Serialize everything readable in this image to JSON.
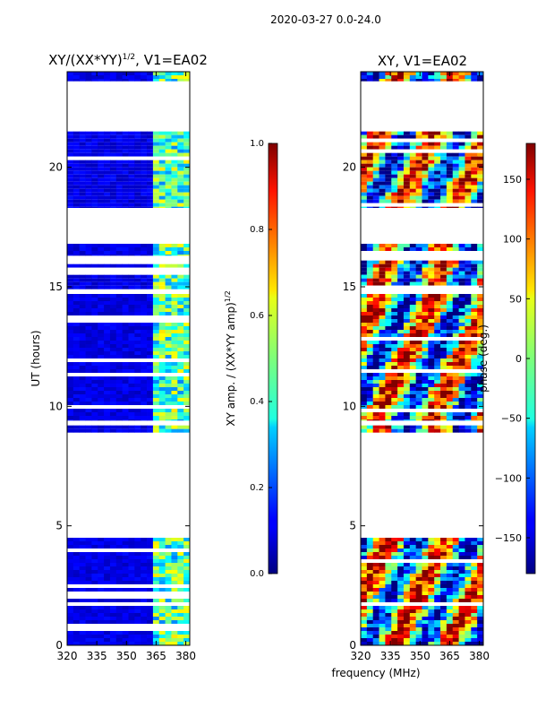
{
  "figure": {
    "suptitle": "2020-03-27 0.0-24.0",
    "xlabel": "frequency (MHz)"
  },
  "chart_data": [
    {
      "type": "heatmap",
      "title": "XY/(XX*YY)",
      "title_superscript": "1/2",
      "title_suffix": ", V1=EA02",
      "xlabel": "frequency (MHz)",
      "ylabel": "UT (hours)",
      "xlim": [
        320,
        382
      ],
      "ylim": [
        0,
        24
      ],
      "xticks": [
        320,
        335,
        350,
        365,
        380
      ],
      "yticks": [
        0,
        5,
        10,
        15,
        20
      ],
      "colormap": "jet",
      "colorbar": {
        "label": "XY amp. / (XX*YY amp)",
        "label_superscript": "1/2",
        "range": [
          0.0,
          1.0
        ],
        "ticks": [
          "0.0",
          "0.2",
          "0.4",
          "0.6",
          "0.8",
          "1.0"
        ]
      },
      "data_blocks_ut_hours": [
        [
          0.0,
          4.5
        ],
        [
          8.9,
          9.2
        ],
        [
          9.4,
          14.7
        ],
        [
          14.9,
          16.1
        ],
        [
          16.3,
          16.8
        ],
        [
          18.3,
          21.5
        ],
        [
          23.6,
          24.0
        ]
      ],
      "notes": "background amplitude near 0.05 below 361 MHz, 0.3-0.6 in 361-382 MHz"
    },
    {
      "type": "heatmap",
      "title": "XY, V1=EA02",
      "xlabel": "frequency (MHz)",
      "ylabel": "",
      "xlim": [
        320,
        382
      ],
      "ylim": [
        0,
        24
      ],
      "xticks": [
        320,
        335,
        350,
        365,
        380
      ],
      "yticks": [
        0,
        5,
        10,
        15,
        20
      ],
      "colormap": "jet",
      "colorbar": {
        "label": "phase (deg.)",
        "range": [
          -180,
          180
        ],
        "ticks": [
          "150",
          "100",
          "50",
          "0",
          "−50",
          "−100",
          "−150"
        ]
      },
      "data_blocks_ut_hours": [
        [
          0.0,
          4.5
        ],
        [
          8.9,
          9.2
        ],
        [
          9.4,
          14.7
        ],
        [
          14.9,
          16.1
        ],
        [
          16.3,
          16.8
        ],
        [
          18.3,
          21.5
        ],
        [
          23.6,
          24.0
        ]
      ],
      "notes": "phase in degrees, mixed from -180 to 180"
    }
  ]
}
